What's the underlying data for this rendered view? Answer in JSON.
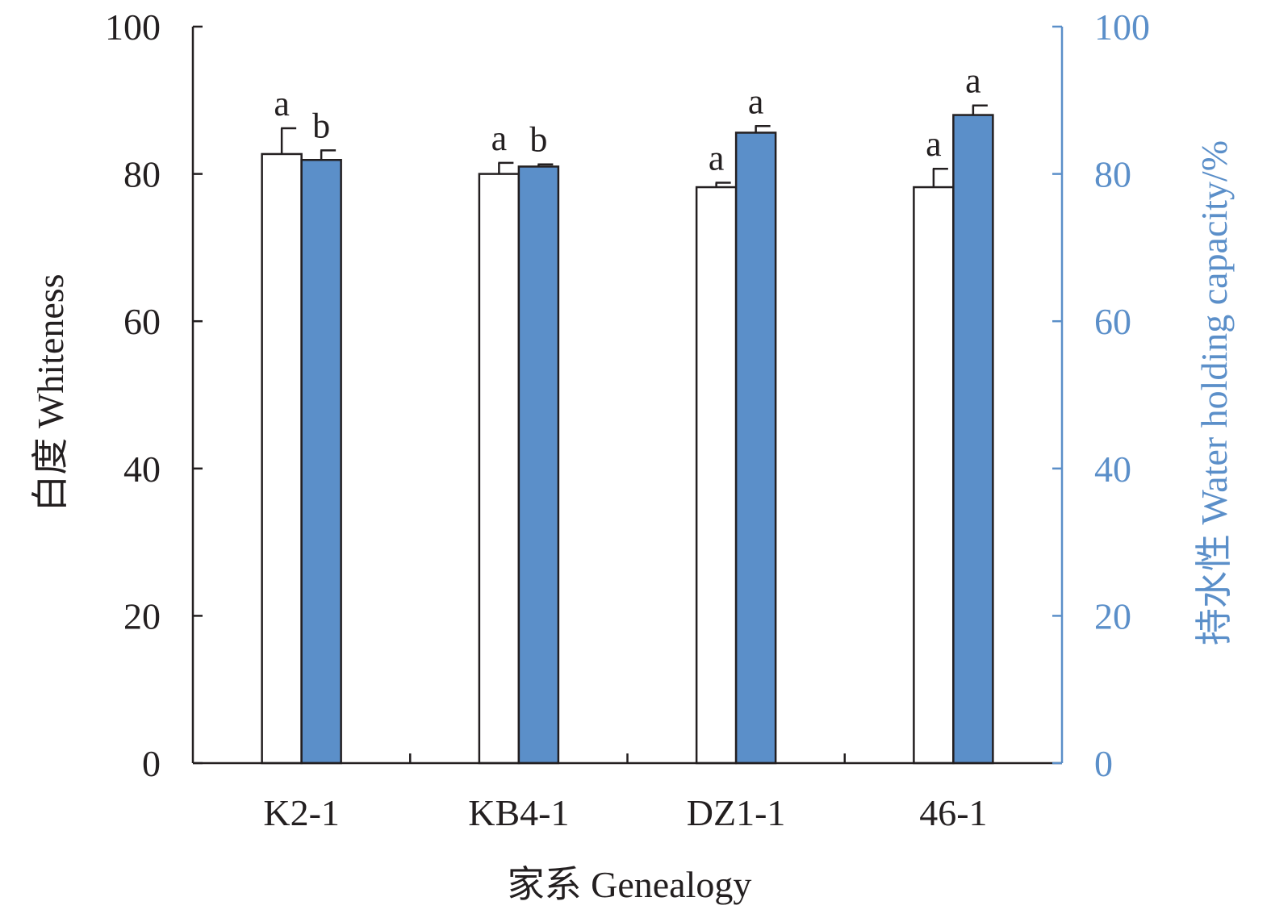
{
  "chart_data": {
    "type": "bar",
    "xlabel": "家系 Genealogy",
    "ylabel_left": "白度 Whiteness",
    "ylabel_right": "持水性 Water holding capacity/%",
    "ylim_left": [
      0,
      100
    ],
    "ylim_right": [
      0,
      100
    ],
    "yticks_left": [
      "0",
      "20",
      "40",
      "60",
      "80",
      "100"
    ],
    "yticks_right": [
      "0",
      "20",
      "40",
      "60",
      "80",
      "100"
    ],
    "categories": [
      "K2-1",
      "KB4-1",
      "DZ1-1",
      "46-1"
    ],
    "series": [
      {
        "axis": "left",
        "color": "#ffffff",
        "values": [
          82.7,
          80.0,
          78.2,
          78.2
        ],
        "errors": [
          3.5,
          1.5,
          0.6,
          2.5
        ],
        "letters": [
          "a",
          "a",
          "a",
          "a"
        ]
      },
      {
        "axis": "right",
        "color": "#5b8fc9",
        "values": [
          81.9,
          81.0,
          85.6,
          88.0
        ],
        "errors": [
          1.3,
          0.3,
          0.9,
          1.3
        ],
        "letters": [
          "b",
          "b",
          "a",
          "a"
        ]
      }
    ],
    "grid": false,
    "legend": "none",
    "colors": {
      "axis_left": "#231f20",
      "axis_right": "#5b8fc9"
    }
  }
}
